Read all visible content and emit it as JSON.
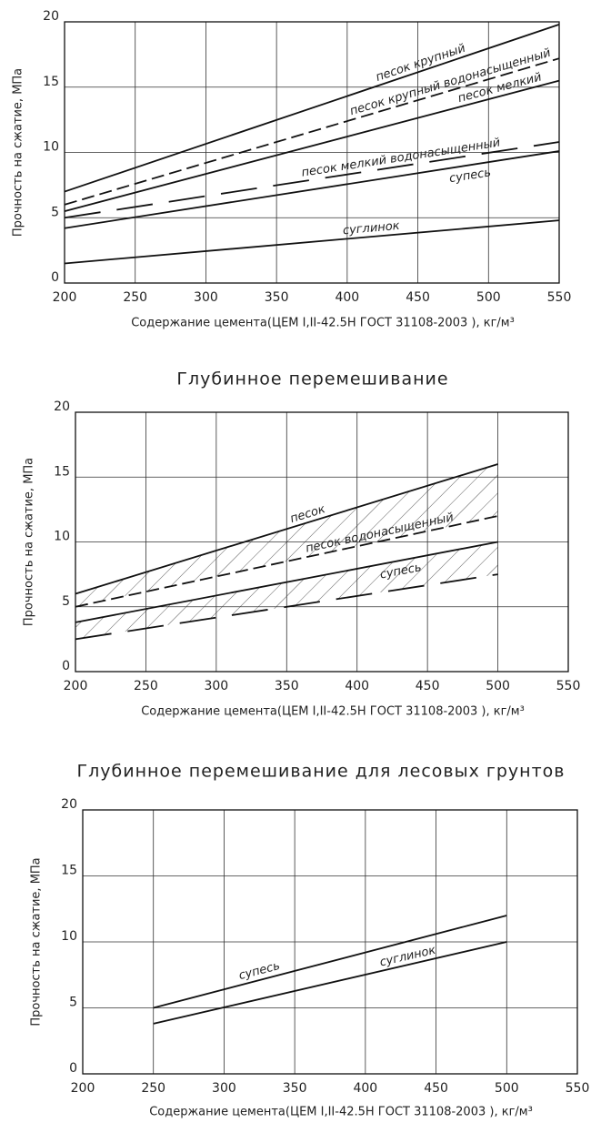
{
  "chart_data": [
    {
      "type": "line",
      "x_label": "Содержание цемента(ЦЕМ I,II-42.5Н ГОСТ 31108-2003 ), кг/м³",
      "y_label": "Прочность на сжатие, МПа",
      "x": [
        200,
        550
      ],
      "xlim": [
        200,
        550
      ],
      "xticks": [
        200,
        250,
        300,
        350,
        400,
        450,
        500,
        550
      ],
      "ylim": [
        0,
        20
      ],
      "yticks": [
        0,
        5,
        10,
        15,
        20
      ],
      "grid": true,
      "series": [
        {
          "name": "песок крупный",
          "color": "#111111",
          "style": "solid",
          "values": [
            7,
            19.8
          ]
        },
        {
          "name": "песок крупный водонасыщенный",
          "color": "#111111",
          "style": "dashed",
          "values": [
            6,
            17.2
          ]
        },
        {
          "name": "песок мелкий",
          "color": "#111111",
          "style": "solid",
          "values": [
            5.5,
            15.5
          ]
        },
        {
          "name": "песок мелкий водонасыщенный",
          "color": "#111111",
          "style": "longdash",
          "values": [
            5,
            10.8
          ]
        },
        {
          "name": "супесь",
          "color": "#111111",
          "style": "solid",
          "values": [
            4.2,
            10.1
          ]
        },
        {
          "name": "суглинок",
          "color": "#111111",
          "style": "solid",
          "values": [
            1.5,
            4.8
          ]
        }
      ]
    },
    {
      "type": "line",
      "title": "Глубинное перемешивание",
      "x_label": "Содержание цемента(ЦЕМ I,II-42.5Н ГОСТ 31108-2003 ), кг/м³",
      "y_label": "Прочность на сжатие, МПа",
      "x": [
        200,
        500
      ],
      "xlim": [
        200,
        550
      ],
      "xticks": [
        200,
        250,
        300,
        350,
        400,
        450,
        500,
        550
      ],
      "ylim": [
        0,
        20
      ],
      "yticks": [
        0,
        5,
        10,
        15,
        20
      ],
      "grid": true,
      "series": [
        {
          "name": "песок",
          "color": "#111111",
          "style": "solid",
          "values": [
            6,
            16
          ]
        },
        {
          "name": "песок водонасыщенный",
          "color": "#111111",
          "style": "dashed",
          "values": [
            5,
            12
          ]
        },
        {
          "name": "супесь",
          "color": "#111111",
          "style": "solid",
          "values": [
            3.8,
            10
          ]
        },
        {
          "color": "#111111",
          "style": "longdash",
          "values": [
            2.5,
            7.5
          ]
        }
      ]
    },
    {
      "type": "line",
      "title": "Глубинное перемешивание для лесовых грунтов",
      "x_label": "Содержание цемента(ЦЕМ I,II-42.5Н ГОСТ 31108-2003 ), кг/м³",
      "y_label": "Прочность на сжатие, МПа",
      "x": [
        250,
        500
      ],
      "xlim": [
        200,
        550
      ],
      "xticks": [
        200,
        250,
        300,
        350,
        400,
        450,
        500,
        550
      ],
      "ylim": [
        0,
        20
      ],
      "yticks": [
        0,
        5,
        10,
        15,
        20
      ],
      "grid": true,
      "series": [
        {
          "name": "супесь",
          "color": "#111111",
          "style": "solid",
          "values": [
            5,
            12
          ]
        },
        {
          "name": "суглинок",
          "color": "#111111",
          "style": "solid",
          "values": [
            3.8,
            10
          ]
        }
      ]
    }
  ]
}
